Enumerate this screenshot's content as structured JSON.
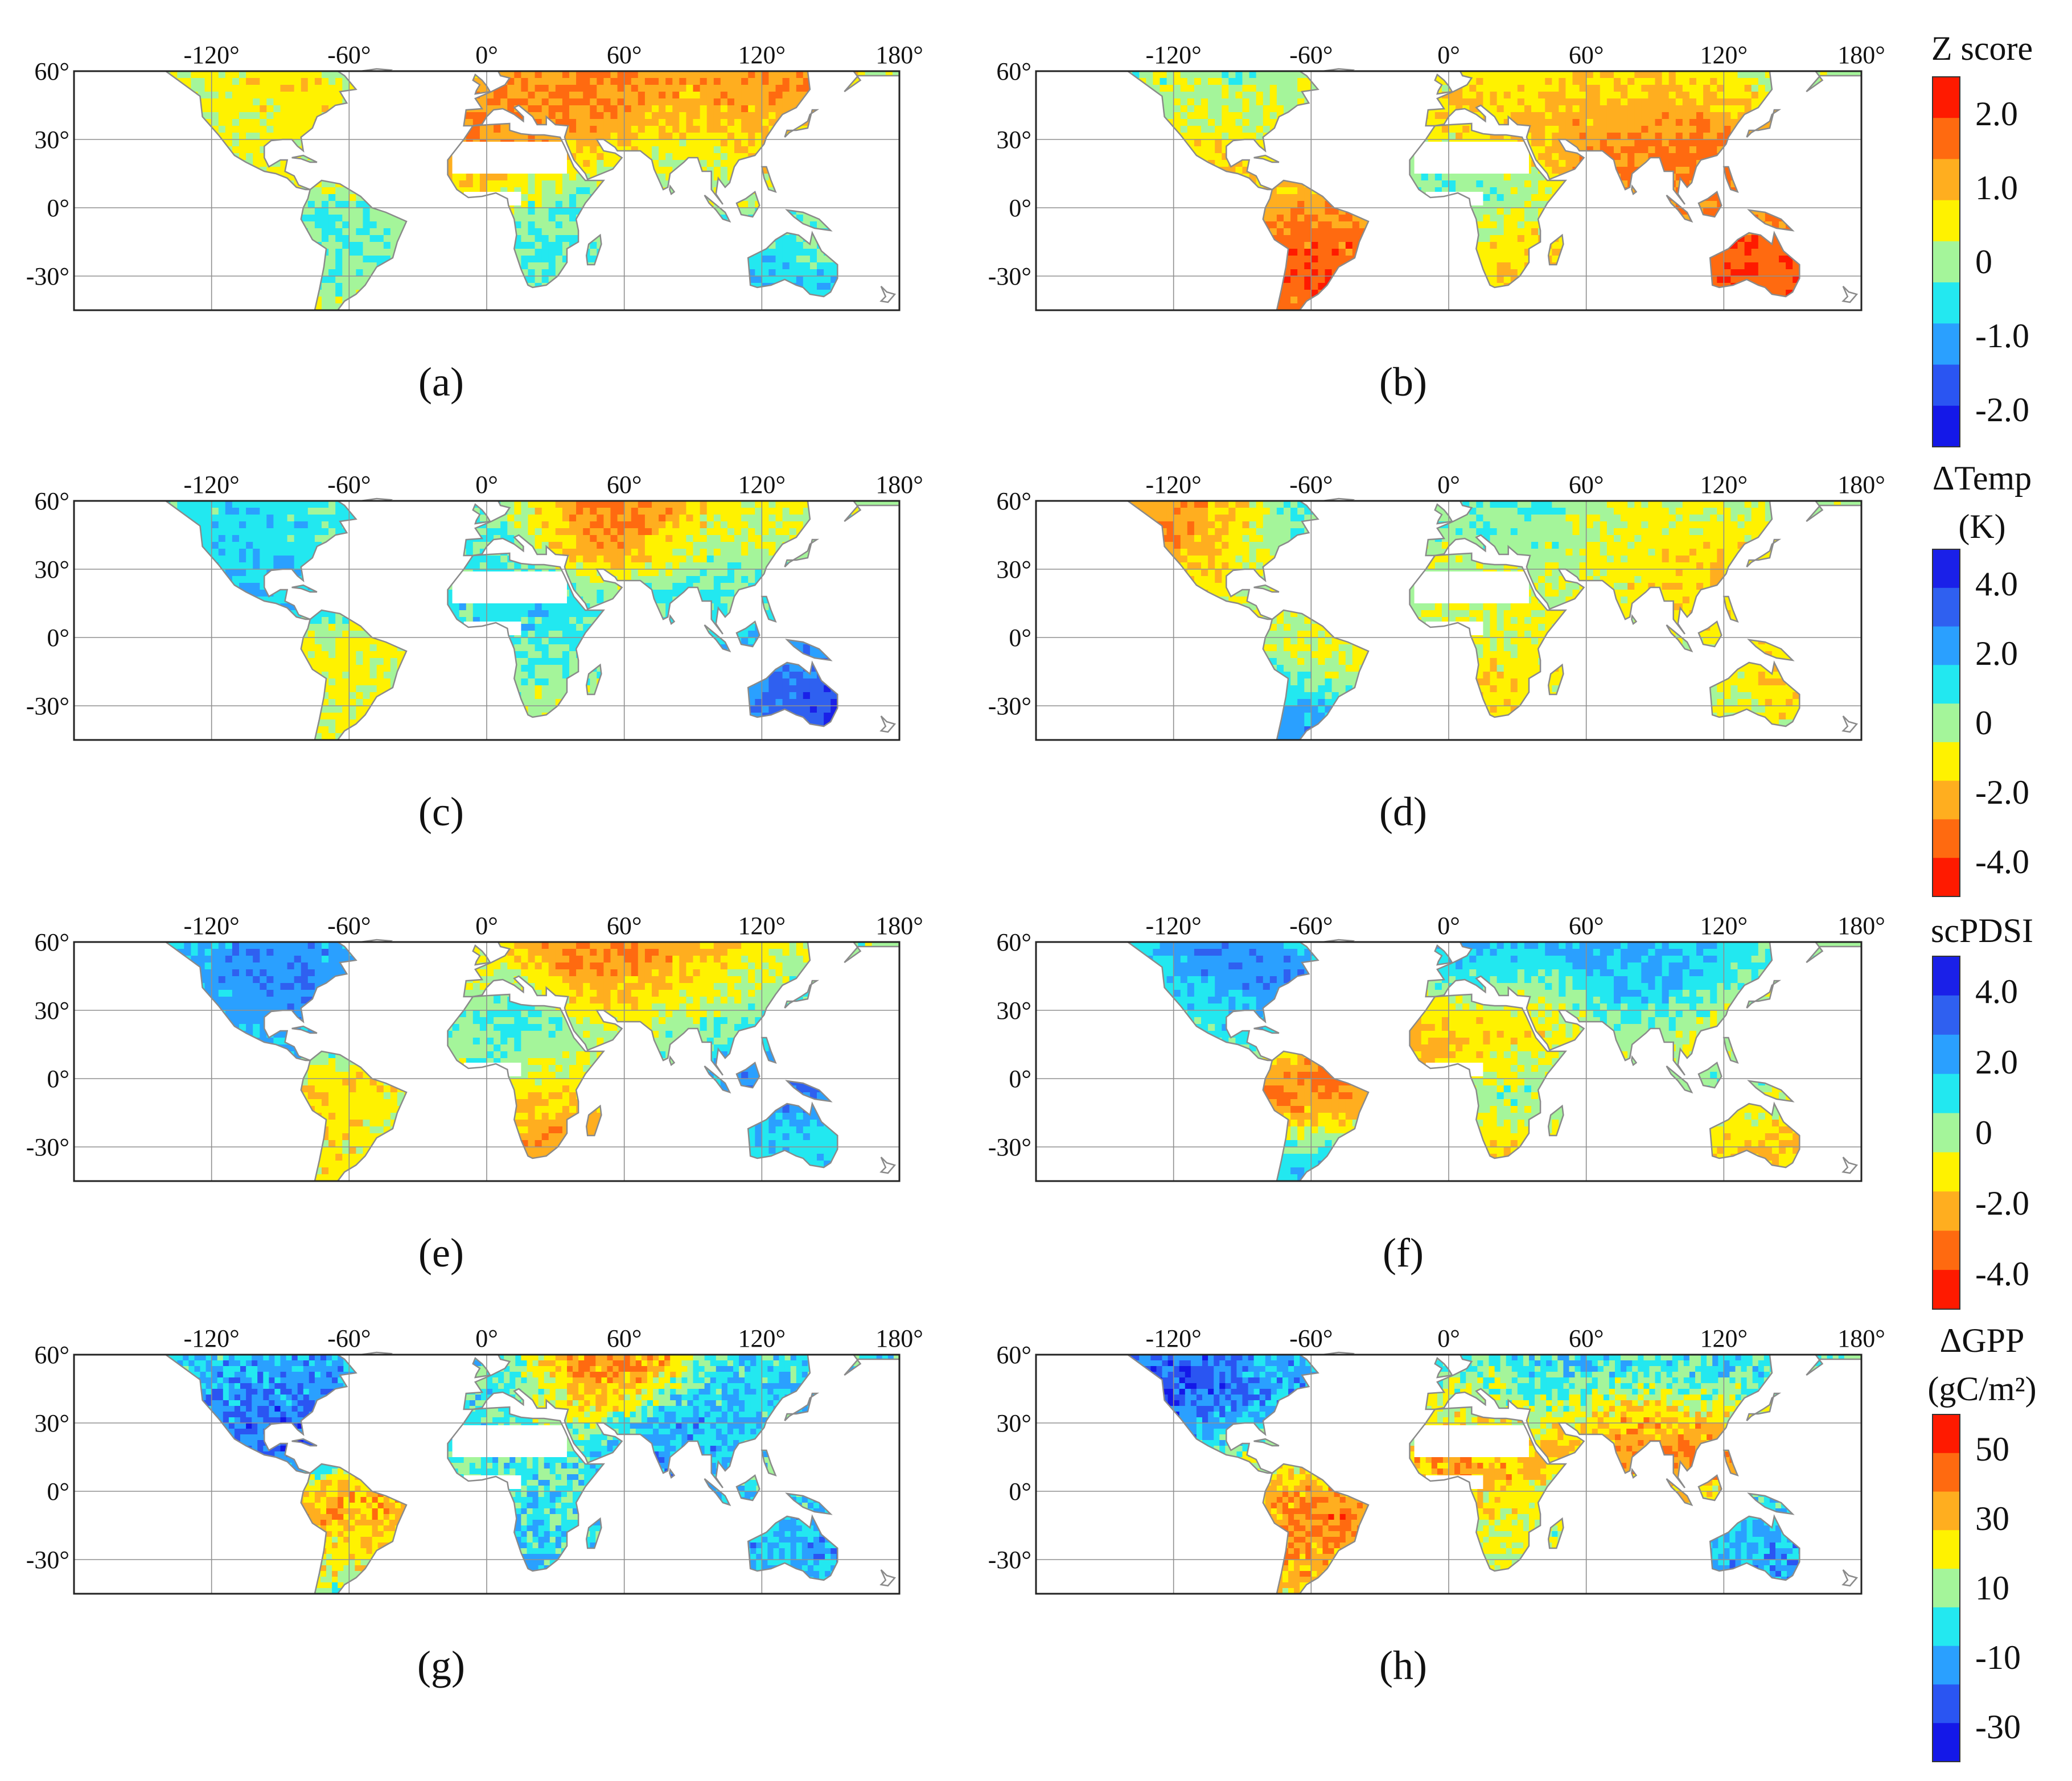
{
  "figure": {
    "panels": [
      {
        "id": "a",
        "label": "(a)",
        "variable": "zscore",
        "year_case": "a"
      },
      {
        "id": "b",
        "label": "(b)",
        "variable": "zscore",
        "year_case": "b"
      },
      {
        "id": "c",
        "label": "(c)",
        "variable": "dtemp",
        "year_case": "a"
      },
      {
        "id": "d",
        "label": "(d)",
        "variable": "dtemp",
        "year_case": "b"
      },
      {
        "id": "e",
        "label": "(e)",
        "variable": "scpdsi",
        "year_case": "a"
      },
      {
        "id": "f",
        "label": "(f)",
        "variable": "scpdsi",
        "year_case": "b"
      },
      {
        "id": "g",
        "label": "(g)",
        "variable": "dgpp",
        "year_case": "a"
      },
      {
        "id": "h",
        "label": "(h)",
        "variable": "dgpp",
        "year_case": "b"
      }
    ],
    "lon_ticks": [
      "-120°",
      "-60°",
      "0°",
      "60°",
      "120°",
      "180°"
    ],
    "lat_ticks": [
      "60°",
      "30°",
      "0°",
      "-30°"
    ],
    "lon_values": [
      -120,
      -60,
      0,
      60,
      120,
      180
    ],
    "lat_values": [
      60,
      30,
      0,
      -30
    ],
    "lon_range": [
      -180,
      180
    ],
    "lat_range": [
      -45,
      60
    ],
    "colorbars": [
      {
        "id": "zscore",
        "title": [
          "Z score"
        ],
        "labels": [
          "2.0",
          "1.0",
          "0",
          "-1.0",
          "-2.0"
        ],
        "label_values": [
          2,
          1,
          0,
          -1,
          -2
        ],
        "range": [
          -2.5,
          2.5
        ],
        "colors": [
          "#ff1a00",
          "#ff6a10",
          "#ffae1f",
          "#fff200",
          "#a4f59a",
          "#23e8f0",
          "#2aa0ff",
          "#2a55f2",
          "#1418e8"
        ]
      },
      {
        "id": "dtemp",
        "title": [
          "ΔTemp",
          "(K)"
        ],
        "labels": [
          "4.0",
          "2.0",
          "0",
          "-2.0",
          "-4.0"
        ],
        "label_values": [
          4,
          2,
          0,
          -2,
          -4
        ],
        "range": [
          -5,
          5
        ],
        "colors": [
          "#1a20e8",
          "#2f60f0",
          "#2aa0ff",
          "#22e8f0",
          "#a4f59a",
          "#fff200",
          "#ffae1f",
          "#ff6a10",
          "#ff1a00"
        ]
      },
      {
        "id": "scpdsi",
        "title": [
          "scPDSI"
        ],
        "labels": [
          "4.0",
          "2.0",
          "0",
          "-2.0",
          "-4.0"
        ],
        "label_values": [
          4,
          2,
          0,
          -2,
          -4
        ],
        "range": [
          -5,
          5
        ],
        "colors": [
          "#1a20e8",
          "#2f60f0",
          "#2aa0ff",
          "#22e8f0",
          "#a4f59a",
          "#fff200",
          "#ffae1f",
          "#ff6a10",
          "#ff1a00"
        ]
      },
      {
        "id": "dgpp",
        "title": [
          "ΔGPP",
          "(gC/m²)"
        ],
        "labels": [
          "50",
          "30",
          "10",
          "-10",
          "-30"
        ],
        "label_values": [
          50,
          30,
          10,
          -10,
          -30
        ],
        "range": [
          -40,
          60
        ],
        "colors": [
          "#ff1a00",
          "#ff6a10",
          "#ffae1f",
          "#fff200",
          "#a4f59a",
          "#23e8f0",
          "#2aa0ff",
          "#2a55f2",
          "#1418e8"
        ]
      }
    ]
  }
}
